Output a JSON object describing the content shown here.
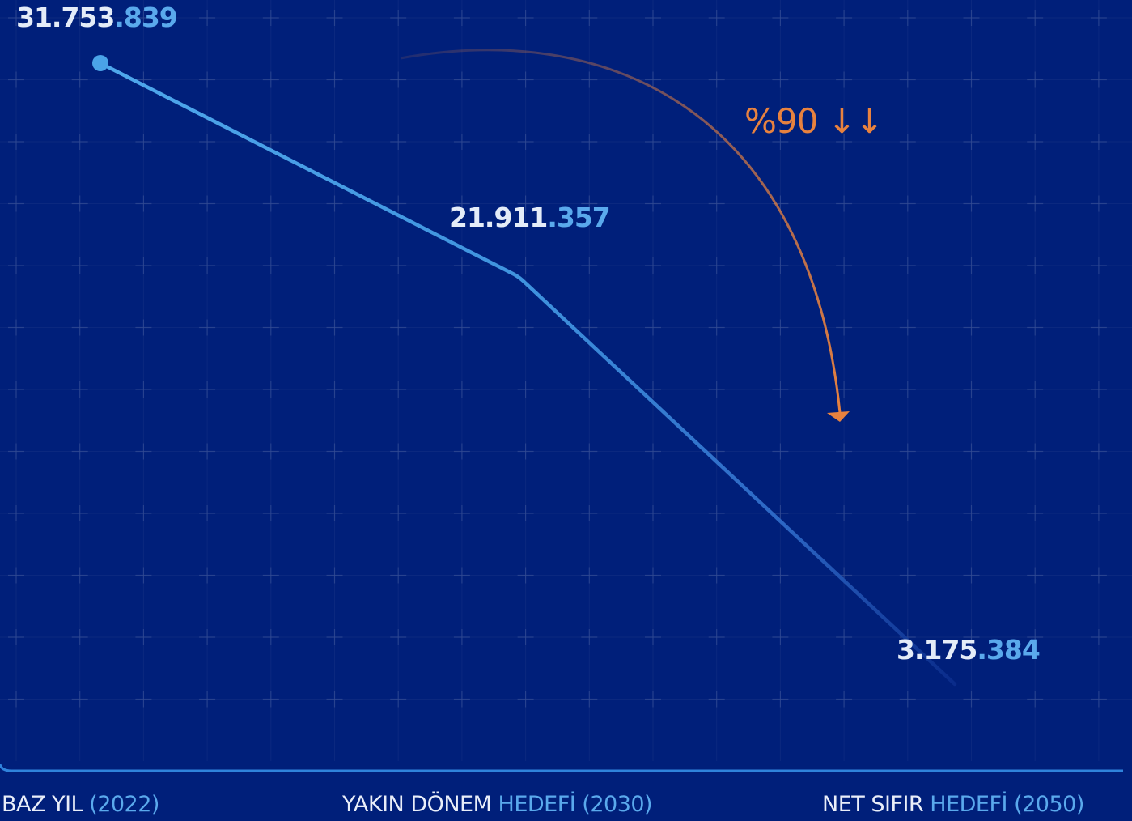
{
  "colors": {
    "background": "#001f7a",
    "line": "#4aa3e8",
    "arrow": "#e8823f",
    "label_light": "#e4ecf8",
    "label_accent": "#5aa9ec"
  },
  "annotation": {
    "text": "%90 ↓↓"
  },
  "chart_data": {
    "type": "line",
    "title": "",
    "xlabel": "",
    "ylabel": "",
    "grid": true,
    "ylim": [
      0,
      35000000
    ],
    "categories": [
      {
        "main": "BAZ YIL",
        "detail": "(2022)"
      },
      {
        "main": "YAKIN DÖNEM",
        "detail": "HEDEFİ (2030)"
      },
      {
        "main": "NET SIFIR",
        "detail": "HEDEFİ (2050)"
      }
    ],
    "series": [
      {
        "values": [
          31753839,
          21911357,
          3175384
        ],
        "labels": [
          {
            "head": "31.753",
            "tail": ".839"
          },
          {
            "head": "21.911",
            "tail": ".357"
          },
          {
            "head": "3.175",
            "tail": ".384"
          }
        ]
      }
    ]
  }
}
